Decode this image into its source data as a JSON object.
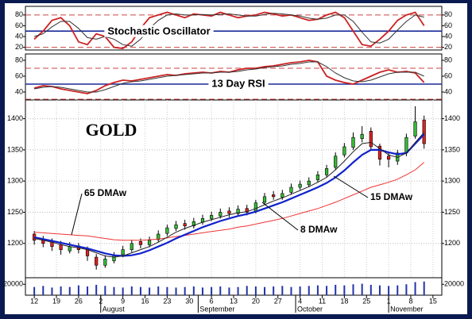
{
  "chart_data": [
    {
      "type": "line",
      "title": "Stochastic Oscillator",
      "x": [
        0,
        2,
        4,
        6,
        8,
        10,
        12,
        14,
        16,
        18,
        20,
        22,
        24,
        26,
        28,
        30,
        32,
        34,
        36,
        38,
        40,
        42,
        44,
        46,
        48,
        50,
        52,
        54,
        56,
        58,
        60,
        62,
        64,
        66,
        68,
        70,
        72,
        74,
        76,
        78,
        80,
        82,
        84,
        86,
        88
      ],
      "series": [
        {
          "color": "#cc2222",
          "values": [
            35,
            50,
            70,
            75,
            60,
            30,
            25,
            45,
            40,
            20,
            18,
            30,
            55,
            75,
            80,
            85,
            80,
            75,
            82,
            80,
            78,
            85,
            80,
            75,
            78,
            80,
            85,
            82,
            78,
            80,
            75,
            70,
            72,
            80,
            85,
            75,
            50,
            25,
            22,
            35,
            50,
            70,
            80,
            85,
            60
          ]
        },
        {
          "color": "#333333",
          "values": [
            40,
            45,
            58,
            68,
            68,
            55,
            38,
            35,
            40,
            35,
            25,
            22,
            35,
            55,
            70,
            80,
            82,
            80,
            80,
            81,
            80,
            81,
            82,
            80,
            78,
            78,
            81,
            83,
            82,
            80,
            78,
            74,
            72,
            74,
            80,
            80,
            68,
            48,
            30,
            28,
            35,
            52,
            68,
            80,
            76
          ]
        }
      ],
      "xlim": [
        -2,
        92
      ],
      "ylim": [
        15,
        96
      ],
      "yticks": [
        20,
        40,
        60,
        80
      ],
      "ref_lines": [
        {
          "value": 80,
          "color": "#cc4444",
          "dash": true
        },
        {
          "value": 20,
          "color": "#cc4444",
          "dash": true
        },
        {
          "value": 50,
          "color": "#1a2a9a",
          "dash": false
        }
      ]
    },
    {
      "type": "line",
      "title": "13 Day RSI",
      "x": [
        0,
        2,
        4,
        6,
        8,
        10,
        12,
        14,
        16,
        18,
        20,
        22,
        24,
        26,
        28,
        30,
        32,
        34,
        36,
        38,
        40,
        42,
        44,
        46,
        48,
        50,
        52,
        54,
        56,
        58,
        60,
        62,
        64,
        66,
        68,
        70,
        72,
        74,
        76,
        78,
        80,
        82,
        84,
        86,
        88
      ],
      "series": [
        {
          "color": "#cc2222",
          "values": [
            45,
            48,
            47,
            44,
            42,
            40,
            38,
            42,
            48,
            52,
            55,
            54,
            56,
            58,
            60,
            62,
            61,
            63,
            64,
            65,
            64,
            66,
            65,
            68,
            70,
            70,
            72,
            73,
            75,
            77,
            78,
            80,
            78,
            60,
            55,
            52,
            50,
            55,
            60,
            65,
            68,
            65,
            66,
            64,
            52
          ]
        },
        {
          "color": "#333333",
          "values": [
            44,
            46,
            47,
            46,
            44,
            42,
            40,
            40,
            43,
            47,
            51,
            53,
            54,
            56,
            58,
            60,
            61,
            62,
            63,
            64,
            64,
            65,
            65,
            66,
            68,
            69,
            71,
            72,
            73,
            75,
            76,
            78,
            78,
            72,
            64,
            58,
            54,
            53,
            55,
            59,
            63,
            65,
            65,
            65,
            60
          ]
        }
      ],
      "xlim": [
        -2,
        92
      ],
      "ylim": [
        30,
        88
      ],
      "yticks": [
        40,
        60,
        80
      ],
      "ref_lines": [
        {
          "value": 70,
          "color": "#cc4444",
          "dash": true
        },
        {
          "value": 31,
          "color": "#cc4444",
          "dash": true
        },
        {
          "value": 50,
          "color": "#1a2a9a",
          "dash": false
        }
      ]
    },
    {
      "type": "candlestick",
      "title": "GOLD",
      "x": [
        0,
        2,
        4,
        6,
        8,
        10,
        12,
        14,
        16,
        18,
        20,
        22,
        24,
        26,
        28,
        30,
        32,
        34,
        36,
        38,
        40,
        42,
        44,
        46,
        48,
        50,
        52,
        54,
        56,
        58,
        60,
        62,
        64,
        66,
        68,
        70,
        72,
        74,
        76,
        78,
        80,
        82,
        84,
        86,
        88
      ],
      "open": [
        1215,
        1205,
        1202,
        1198,
        1188,
        1196,
        1190,
        1178,
        1165,
        1172,
        1182,
        1190,
        1203,
        1198,
        1206,
        1216,
        1224,
        1232,
        1228,
        1234,
        1240,
        1244,
        1252,
        1248,
        1256,
        1252,
        1266,
        1278,
        1274,
        1282,
        1290,
        1294,
        1302,
        1310,
        1322,
        1342,
        1354,
        1368,
        1380,
        1356,
        1340,
        1332,
        1345,
        1372,
        1398
      ],
      "high": [
        1220,
        1212,
        1208,
        1204,
        1202,
        1201,
        1195,
        1183,
        1181,
        1186,
        1196,
        1206,
        1208,
        1211,
        1221,
        1230,
        1236,
        1238,
        1241,
        1246,
        1251,
        1256,
        1258,
        1261,
        1262,
        1270,
        1281,
        1284,
        1286,
        1296,
        1301,
        1306,
        1316,
        1326,
        1346,
        1361,
        1378,
        1388,
        1386,
        1360,
        1346,
        1350,
        1376,
        1420,
        1405
      ],
      "low": [
        1198,
        1194,
        1188,
        1182,
        1184,
        1184,
        1172,
        1158,
        1161,
        1168,
        1178,
        1186,
        1192,
        1194,
        1202,
        1212,
        1220,
        1222,
        1224,
        1230,
        1236,
        1240,
        1242,
        1244,
        1245,
        1248,
        1262,
        1270,
        1270,
        1278,
        1286,
        1290,
        1298,
        1306,
        1318,
        1338,
        1350,
        1362,
        1350,
        1325,
        1322,
        1326,
        1340,
        1368,
        1352
      ],
      "close": [
        1205,
        1200,
        1195,
        1190,
        1195,
        1190,
        1180,
        1165,
        1175,
        1180,
        1190,
        1200,
        1198,
        1205,
        1215,
        1225,
        1230,
        1228,
        1235,
        1240,
        1245,
        1250,
        1248,
        1255,
        1250,
        1265,
        1275,
        1275,
        1280,
        1290,
        1295,
        1300,
        1310,
        1320,
        1340,
        1355,
        1370,
        1375,
        1355,
        1335,
        1335,
        1345,
        1370,
        1395,
        1360
      ],
      "up_color": "#33bb33",
      "down_color": "#dd2222",
      "series": [
        {
          "name": "65 DMAw",
          "color": "#ee3333",
          "width": 1,
          "values": [
            1218,
            1217,
            1216,
            1215,
            1214,
            1213,
            1212,
            1210,
            1208,
            1206,
            1205,
            1205,
            1205,
            1206,
            1207,
            1209,
            1211,
            1213,
            1215,
            1217,
            1219,
            1221,
            1223,
            1226,
            1228,
            1231,
            1234,
            1237,
            1240,
            1244,
            1248,
            1252,
            1256,
            1261,
            1266,
            1272,
            1278,
            1284,
            1290,
            1294,
            1298,
            1303,
            1310,
            1318,
            1330
          ]
        },
        {
          "name": "15 DMAw",
          "color": "#1122cc",
          "width": 2.2,
          "values": [
            1210,
            1207,
            1204,
            1201,
            1198,
            1195,
            1192,
            1188,
            1184,
            1181,
            1180,
            1181,
            1184,
            1189,
            1195,
            1201,
            1208,
            1214,
            1220,
            1226,
            1231,
            1236,
            1240,
            1244,
            1247,
            1251,
            1256,
            1261,
            1266,
            1272,
            1278,
            1284,
            1290,
            1297,
            1306,
            1317,
            1330,
            1342,
            1350,
            1350,
            1346,
            1343,
            1345,
            1360,
            1375
          ]
        },
        {
          "name": "8 DMAw",
          "color": "#222222",
          "width": 1,
          "values": [
            1208,
            1205,
            1202,
            1198,
            1195,
            1193,
            1190,
            1185,
            1180,
            1178,
            1180,
            1185,
            1190,
            1195,
            1202,
            1210,
            1218,
            1224,
            1229,
            1234,
            1238,
            1242,
            1246,
            1249,
            1251,
            1256,
            1262,
            1268,
            1273,
            1279,
            1285,
            1291,
            1298,
            1306,
            1318,
            1332,
            1347,
            1360,
            1362,
            1352,
            1342,
            1338,
            1345,
            1362,
            1378
          ]
        }
      ],
      "xlim": [
        -2,
        92
      ],
      "ylim": [
        1145,
        1430
      ],
      "yticks": [
        1200,
        1250,
        1300,
        1350,
        1400
      ],
      "grid": true
    },
    {
      "type": "bar",
      "x": [
        0,
        2,
        4,
        6,
        8,
        10,
        12,
        14,
        16,
        18,
        20,
        22,
        24,
        26,
        28,
        30,
        32,
        34,
        36,
        38,
        40,
        42,
        44,
        46,
        48,
        50,
        52,
        54,
        56,
        58,
        60,
        62,
        64,
        66,
        68,
        70,
        72,
        74,
        76,
        78,
        80,
        82,
        84,
        86,
        88
      ],
      "values": [
        15000,
        17000,
        14000,
        16000,
        15000,
        18000,
        16000,
        19000,
        17000,
        15000,
        14000,
        16000,
        15000,
        14000,
        16000,
        15000,
        14000,
        15000,
        16000,
        14000,
        15000,
        16000,
        14000,
        15000,
        17000,
        16000,
        15000,
        16000,
        17000,
        15000,
        16000,
        17000,
        18000,
        17000,
        19000,
        18000,
        20000,
        21000,
        19000,
        18000,
        17000,
        18000,
        20000,
        24000,
        25000
      ],
      "color": "#2233aa",
      "xlim": [
        -2,
        92
      ],
      "ylim": [
        0,
        32000
      ],
      "yticks": [
        20000
      ],
      "xticks": [
        {
          "value": 0,
          "label": "12"
        },
        {
          "value": 5,
          "label": "19"
        },
        {
          "value": 10,
          "label": "26"
        },
        {
          "value": 15,
          "label": "2"
        },
        {
          "value": 20,
          "label": "9"
        },
        {
          "value": 25,
          "label": "16"
        },
        {
          "value": 30,
          "label": "23"
        },
        {
          "value": 35,
          "label": "30"
        },
        {
          "value": 40,
          "label": "6"
        },
        {
          "value": 45,
          "label": "13"
        },
        {
          "value": 50,
          "label": "20"
        },
        {
          "value": 55,
          "label": "27"
        },
        {
          "value": 60,
          "label": "4"
        },
        {
          "value": 65,
          "label": "11"
        },
        {
          "value": 70,
          "label": "18"
        },
        {
          "value": 75,
          "label": "25"
        },
        {
          "value": 80,
          "label": "1"
        },
        {
          "value": 85,
          "label": "8"
        },
        {
          "value": 90,
          "label": "15"
        }
      ],
      "month_labels": [
        {
          "value": 15,
          "label": "August"
        },
        {
          "value": 37,
          "label": "September"
        },
        {
          "value": 59,
          "label": "October"
        },
        {
          "value": 80,
          "label": "November"
        }
      ]
    }
  ]
}
